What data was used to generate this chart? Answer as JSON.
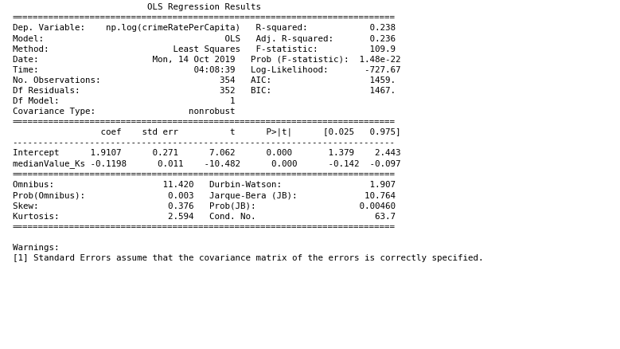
{
  "lines": [
    "                          OLS Regression Results                          ",
    "==========================================================================",
    "Dep. Variable:    np.log(crimeRatePerCapita)   R-squared:            0.238",
    "Model:                                   OLS   Adj. R-squared:       0.236",
    "Method:                        Least Squares   F-statistic:          109.9",
    "Date:                      Mon, 14 Oct 2019   Prob (F-statistic):  1.48e-22",
    "Time:                              04:08:39   Log-Likelihood:       -727.67",
    "No. Observations:                       354   AIC:                   1459. ",
    "Df Residuals:                           352   BIC:                   1467. ",
    "Df Model:                                 1                                ",
    "Covariance Type:                  nonrobust                                ",
    "==========================================================================",
    "                 coef    std err          t      P>|t|      [0.025   0.975]",
    "--------------------------------------------------------------------------",
    "Intercept      1.9107      0.271      7.062      0.000       1.379    2.443",
    "medianValue_Ks -0.1198      0.011    -10.482      0.000      -0.142  -0.097",
    "==========================================================================",
    "Omnibus:                     11.420   Durbin-Watson:                 1.907",
    "Prob(Omnibus):                0.003   Jarque-Bera (JB):             10.764",
    "Skew:                         0.376   Prob(JB):                    0.00460",
    "Kurtosis:                     2.594   Cond. No.                       63.7",
    "==========================================================================",
    "",
    "Warnings:",
    "[1] Standard Errors assume that the covariance matrix of the errors is correctly specified."
  ],
  "font_family": "monospace",
  "font_size": 7.8,
  "bg_color": "#ffffff",
  "text_color": "#000000",
  "linespacing": 1.38
}
